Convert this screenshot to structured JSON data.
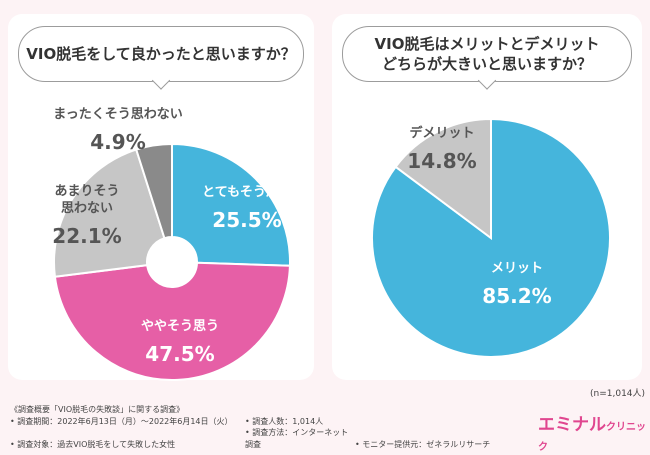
{
  "colors": {
    "blue": "#45b5dc",
    "pink": "#e65fa6",
    "light_gray": "#c6c6c6",
    "dark_gray": "#8a8a8a",
    "brand": "#e0468f"
  },
  "chart_data": [
    {
      "type": "pie",
      "donut": true,
      "title": "VIO脱毛をして良かったと思いますか？",
      "slices": [
        {
          "label": "とてもそう思う",
          "value": 25.5,
          "color": "#45b5dc",
          "text_color": "#ffffff"
        },
        {
          "label": "ややそう思う",
          "value": 47.5,
          "color": "#e65fa6",
          "text_color": "#ffffff"
        },
        {
          "label": "あまりそう思わない",
          "value": 22.1,
          "color": "#c6c6c6",
          "text_color": "#555555"
        },
        {
          "label": "まったくそう思わない",
          "value": 4.9,
          "color": "#8a8a8a",
          "text_color": "#555555"
        }
      ]
    },
    {
      "type": "pie",
      "donut": false,
      "title": "VIO脱毛はメリットとデメリットどちらが大きいと思いますか？",
      "title_lines": [
        "VIO脱毛はメリットとデメリット",
        "どちらが大きいと思いますか？"
      ],
      "slices": [
        {
          "label": "メリット",
          "value": 85.2,
          "color": "#45b5dc",
          "text_color": "#ffffff"
        },
        {
          "label": "デメリット",
          "value": 14.8,
          "color": "#c6c6c6",
          "text_color": "#555555"
        }
      ]
    }
  ],
  "sample_size": "(n=1,014人)",
  "footer": {
    "title": "《調査概要「VIO脱毛の失敗談」に関する調査》",
    "period": "• 調査期間：2022年6月13日（月）～2022年6月14日（火）",
    "count": "• 調査人数：1,014人",
    "target": "• 調査対象：過去VIO脱毛をして失敗した女性",
    "method": "• 調査方法：インターネット調査",
    "monitor": "• モニター提供元：ゼネラルリサーチ"
  },
  "brand": {
    "name": "エミナル",
    "sub": "クリニック"
  }
}
